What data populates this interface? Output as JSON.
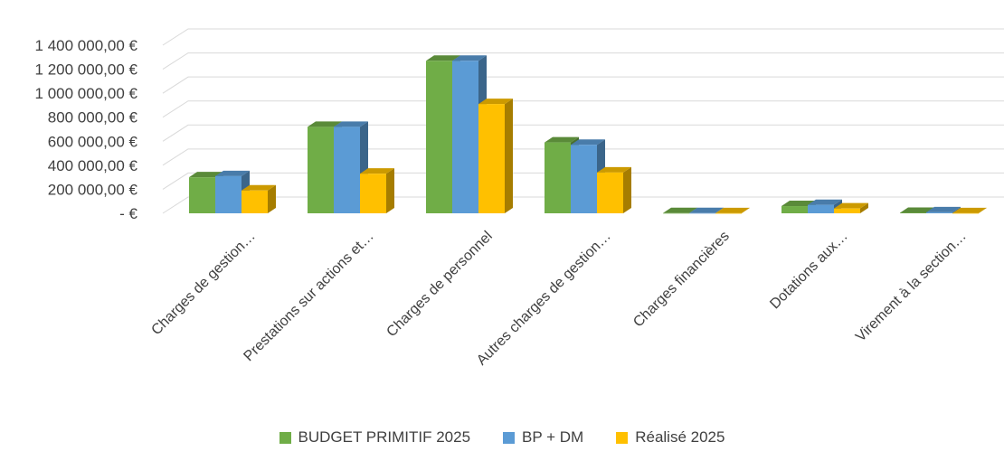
{
  "chart_data": {
    "type": "bar",
    "title": "",
    "xlabel": "",
    "ylabel": "",
    "ylim": [
      0,
      1400000
    ],
    "yticks": [
      0,
      200000,
      400000,
      600000,
      800000,
      1000000,
      1200000,
      1400000
    ],
    "ytick_labels": [
      "-   €",
      "200 000,00 €",
      "400 000,00 €",
      "600 000,00 €",
      "800 000,00 €",
      "1 000 000,00 €",
      "1 200 000,00 €",
      "1 400 000,00 €"
    ],
    "grid": true,
    "legend_position": "bottom",
    "categories": [
      "Charges de gestion…",
      "Prestations sur actions et…",
      "Charges de personnel",
      "Autres charges de gestion…",
      "Charges financières",
      "Dotations aux…",
      "Virement à la section…"
    ],
    "series": [
      {
        "name": "BUDGET PRIMITIF 2025",
        "color": "#70AD47",
        "values": [
          300000,
          720000,
          1270000,
          590000,
          1500,
          60000,
          4000
        ]
      },
      {
        "name": "BP + DM",
        "color": "#5B9BD5",
        "values": [
          310000,
          720000,
          1270000,
          570000,
          1500,
          70000,
          8000
        ]
      },
      {
        "name": "Réalisé 2025",
        "color": "#FFC000",
        "values": [
          190000,
          330000,
          910000,
          340000,
          500,
          40000,
          1000
        ]
      }
    ]
  }
}
